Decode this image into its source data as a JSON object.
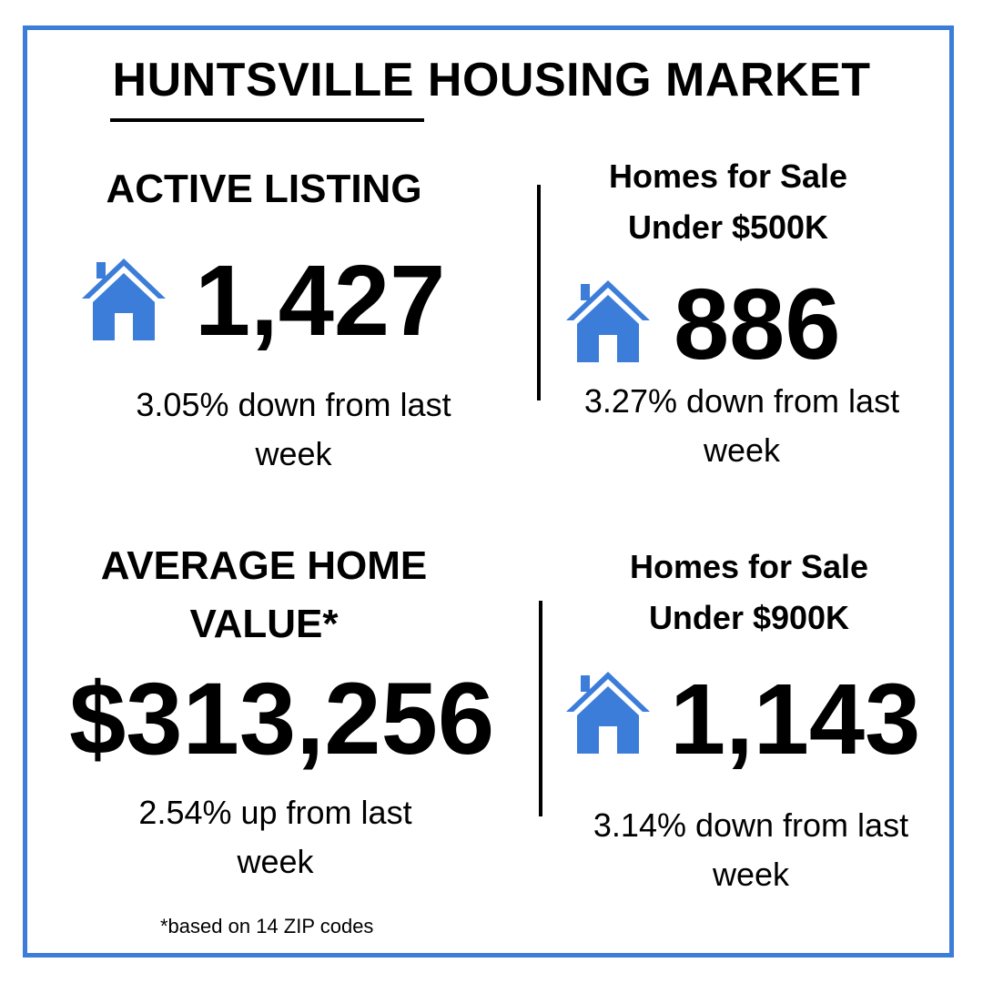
{
  "colors": {
    "accent": "#3b7dd8",
    "text": "#000000",
    "background": "#ffffff"
  },
  "title": "HUNTSVILLE HOUSING MARKET",
  "active_listing": {
    "heading": "ACTIVE LISTING",
    "icon": "house-icon",
    "value": "1,427",
    "change": "3.05% down from last week"
  },
  "under_500k": {
    "heading_line1": "Homes for Sale",
    "heading_line2": "Under $500K",
    "icon": "house-icon",
    "value": "886",
    "change": "3.27% down from last week"
  },
  "average_home_value": {
    "heading_line1": "AVERAGE HOME",
    "heading_line2": "VALUE*",
    "value": "$313,256",
    "change": "2.54% up from last week",
    "footnote": "*based on 14 ZIP codes"
  },
  "under_900k": {
    "heading_line1": "Homes for Sale",
    "heading_line2": "Under $900K",
    "icon": "house-icon",
    "value": "1,143",
    "change": "3.14% down from last week"
  }
}
